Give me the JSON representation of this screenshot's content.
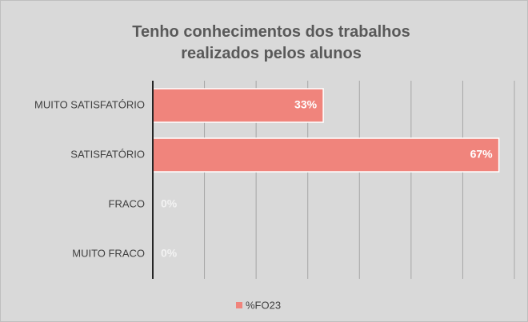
{
  "chart_data": {
    "type": "bar",
    "orientation": "horizontal",
    "title": "Tenho conhecimentos dos trabalhos realizados pelos alunos",
    "categories": [
      "MUITO SATISFATÓRIO",
      "SATISFATÓRIO",
      "FRACO",
      "MUITO FRACO"
    ],
    "series": [
      {
        "name": "%FO23",
        "color": "#f0847c",
        "values": [
          33,
          67,
          0,
          0
        ],
        "value_labels": [
          "33%",
          "67%",
          "0%",
          "0%"
        ]
      }
    ],
    "xlim": [
      0,
      70
    ],
    "xticks": [
      0,
      10,
      20,
      30,
      40,
      50,
      60,
      70
    ],
    "grid": true,
    "legend": "bottom"
  }
}
